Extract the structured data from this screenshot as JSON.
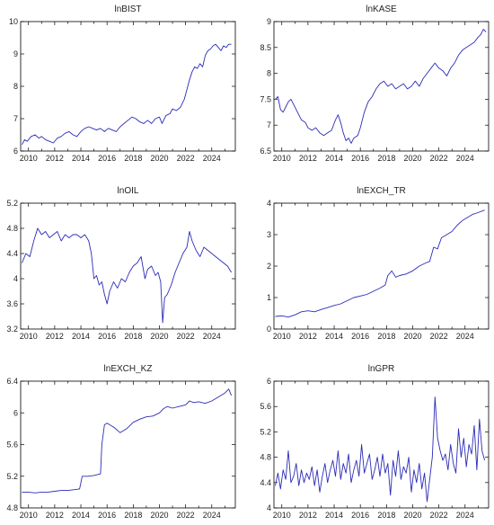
{
  "chart_data": [
    {
      "type": "line",
      "title": "lnBIST",
      "xlabel": "",
      "ylabel": "",
      "xlim": [
        2009.4,
        2025.8
      ],
      "ylim": [
        6,
        10
      ],
      "x_ticks": [
        2010,
        2012,
        2014,
        2016,
        2018,
        2020,
        2022,
        2024
      ],
      "y_ticks": [
        6,
        7,
        8,
        9,
        10
      ],
      "series": [
        {
          "x": [
            2009.5,
            2009.7,
            2009.9,
            2010.2,
            2010.5,
            2010.8,
            2011.0,
            2011.3,
            2011.6,
            2011.9,
            2012.2,
            2012.5,
            2012.8,
            2013.1,
            2013.4,
            2013.7,
            2014.0,
            2014.3,
            2014.6,
            2014.9,
            2015.2,
            2015.5,
            2015.8,
            2016.1,
            2016.4,
            2016.7,
            2017.0,
            2017.3,
            2017.6,
            2017.9,
            2018.2,
            2018.5,
            2018.8,
            2019.1,
            2019.4,
            2019.7,
            2020.0,
            2020.2,
            2020.5,
            2020.8,
            2021.0,
            2021.3,
            2021.6,
            2021.9,
            2022.1,
            2022.3,
            2022.5,
            2022.7,
            2022.9,
            2023.1,
            2023.3,
            2023.5,
            2023.7,
            2023.9,
            2024.1,
            2024.3,
            2024.5,
            2024.7,
            2024.9,
            2025.1,
            2025.3,
            2025.5
          ],
          "y": [
            6.2,
            6.35,
            6.3,
            6.45,
            6.5,
            6.4,
            6.45,
            6.35,
            6.3,
            6.25,
            6.4,
            6.45,
            6.55,
            6.6,
            6.5,
            6.45,
            6.6,
            6.7,
            6.75,
            6.7,
            6.65,
            6.7,
            6.6,
            6.7,
            6.65,
            6.6,
            6.75,
            6.85,
            6.95,
            7.05,
            7.0,
            6.9,
            6.85,
            6.95,
            6.85,
            7.0,
            7.05,
            6.85,
            7.1,
            7.15,
            7.3,
            7.25,
            7.35,
            7.6,
            7.9,
            8.2,
            8.45,
            8.6,
            8.55,
            8.7,
            8.6,
            8.95,
            9.1,
            9.15,
            9.25,
            9.3,
            9.2,
            9.1,
            9.25,
            9.2,
            9.3,
            9.3
          ]
        }
      ]
    },
    {
      "type": "line",
      "title": "lnKASE",
      "xlabel": "",
      "ylabel": "",
      "xlim": [
        2009.4,
        2025.8
      ],
      "ylim": [
        6.5,
        9.0
      ],
      "x_ticks": [
        2010,
        2012,
        2014,
        2016,
        2018,
        2020,
        2022,
        2024
      ],
      "y_ticks": [
        6.5,
        7.0,
        7.5,
        8.0,
        8.5,
        9.0
      ],
      "series": [
        {
          "x": [
            2009.5,
            2009.7,
            2009.9,
            2010.1,
            2010.3,
            2010.5,
            2010.7,
            2010.9,
            2011.1,
            2011.3,
            2011.5,
            2011.8,
            2012.0,
            2012.3,
            2012.6,
            2012.9,
            2013.2,
            2013.5,
            2013.8,
            2014.1,
            2014.3,
            2014.5,
            2014.7,
            2014.9,
            2015.1,
            2015.3,
            2015.5,
            2015.8,
            2016.0,
            2016.3,
            2016.6,
            2016.9,
            2017.2,
            2017.5,
            2017.8,
            2018.1,
            2018.4,
            2018.7,
            2019.0,
            2019.3,
            2019.6,
            2019.9,
            2020.2,
            2020.5,
            2020.8,
            2021.1,
            2021.4,
            2021.7,
            2022.0,
            2022.3,
            2022.6,
            2022.9,
            2023.2,
            2023.5,
            2023.8,
            2024.1,
            2024.4,
            2024.7,
            2025.0,
            2025.2,
            2025.4,
            2025.6
          ],
          "y": [
            7.5,
            7.55,
            7.3,
            7.25,
            7.35,
            7.45,
            7.5,
            7.4,
            7.3,
            7.2,
            7.1,
            7.05,
            6.95,
            6.9,
            6.95,
            6.85,
            6.8,
            6.85,
            6.9,
            7.1,
            7.2,
            7.05,
            6.85,
            6.7,
            6.75,
            6.65,
            6.75,
            6.8,
            6.95,
            7.25,
            7.45,
            7.55,
            7.7,
            7.8,
            7.85,
            7.75,
            7.8,
            7.7,
            7.75,
            7.8,
            7.7,
            7.75,
            7.85,
            7.75,
            7.9,
            8.0,
            8.1,
            8.2,
            8.1,
            8.05,
            7.95,
            8.1,
            8.2,
            8.35,
            8.45,
            8.5,
            8.55,
            8.6,
            8.7,
            8.75,
            8.85,
            8.8
          ]
        }
      ]
    },
    {
      "type": "line",
      "title": "lnOIL",
      "xlabel": "",
      "ylabel": "",
      "xlim": [
        2009.4,
        2025.8
      ],
      "ylim": [
        3.2,
        5.2
      ],
      "x_ticks": [
        2010,
        2012,
        2014,
        2016,
        2018,
        2020,
        2022,
        2024
      ],
      "y_ticks": [
        3.2,
        3.6,
        4.0,
        4.4,
        4.8,
        5.2
      ],
      "series": [
        {
          "x": [
            2009.5,
            2009.8,
            2010.1,
            2010.4,
            2010.7,
            2011.0,
            2011.3,
            2011.6,
            2011.9,
            2012.2,
            2012.5,
            2012.8,
            2013.1,
            2013.4,
            2013.7,
            2014.0,
            2014.3,
            2014.6,
            2014.8,
            2015.0,
            2015.2,
            2015.4,
            2015.6,
            2015.8,
            2016.0,
            2016.2,
            2016.5,
            2016.8,
            2017.1,
            2017.4,
            2017.7,
            2018.0,
            2018.3,
            2018.6,
            2018.9,
            2019.1,
            2019.4,
            2019.7,
            2019.9,
            2020.1,
            2020.25,
            2020.4,
            2020.6,
            2020.9,
            2021.2,
            2021.5,
            2021.8,
            2022.1,
            2022.3,
            2022.5,
            2022.8,
            2023.1,
            2023.4,
            2023.7,
            2024.0,
            2024.3,
            2024.6,
            2024.9,
            2025.2,
            2025.5
          ],
          "y": [
            4.25,
            4.4,
            4.35,
            4.6,
            4.8,
            4.7,
            4.75,
            4.65,
            4.7,
            4.75,
            4.6,
            4.7,
            4.65,
            4.7,
            4.7,
            4.65,
            4.7,
            4.6,
            4.4,
            4.0,
            4.05,
            3.9,
            3.95,
            3.75,
            3.6,
            3.8,
            3.95,
            3.85,
            4.0,
            3.95,
            4.1,
            4.2,
            4.25,
            4.35,
            4.0,
            4.15,
            4.2,
            4.05,
            4.1,
            3.95,
            3.3,
            3.7,
            3.75,
            3.9,
            4.1,
            4.25,
            4.4,
            4.5,
            4.75,
            4.6,
            4.45,
            4.35,
            4.5,
            4.45,
            4.4,
            4.35,
            4.3,
            4.25,
            4.2,
            4.1
          ]
        }
      ]
    },
    {
      "type": "line",
      "title": "lnEXCH_TR",
      "xlabel": "",
      "ylabel": "",
      "xlim": [
        2009.4,
        2025.8
      ],
      "ylim": [
        0,
        4
      ],
      "x_ticks": [
        2010,
        2012,
        2014,
        2016,
        2018,
        2020,
        2022,
        2024
      ],
      "y_ticks": [
        0,
        1,
        2,
        3,
        4
      ],
      "series": [
        {
          "x": [
            2009.5,
            2010.0,
            2010.5,
            2011.0,
            2011.5,
            2012.0,
            2012.5,
            2013.0,
            2013.5,
            2014.0,
            2014.5,
            2015.0,
            2015.5,
            2016.0,
            2016.5,
            2017.0,
            2017.5,
            2017.9,
            2018.1,
            2018.4,
            2018.7,
            2019.0,
            2019.5,
            2020.0,
            2020.5,
            2021.0,
            2021.3,
            2021.6,
            2021.9,
            2022.2,
            2022.6,
            2023.0,
            2023.4,
            2023.8,
            2024.2,
            2024.6,
            2025.0,
            2025.5
          ],
          "y": [
            0.4,
            0.42,
            0.38,
            0.45,
            0.55,
            0.58,
            0.55,
            0.62,
            0.68,
            0.75,
            0.8,
            0.9,
            1.0,
            1.05,
            1.1,
            1.2,
            1.3,
            1.4,
            1.7,
            1.85,
            1.65,
            1.7,
            1.75,
            1.85,
            2.0,
            2.1,
            2.15,
            2.6,
            2.55,
            2.9,
            3.0,
            3.1,
            3.3,
            3.45,
            3.55,
            3.65,
            3.7,
            3.78
          ]
        }
      ]
    },
    {
      "type": "line",
      "title": "lnEXCH_KZ",
      "xlabel": "",
      "ylabel": "",
      "xlim": [
        2009.4,
        2025.8
      ],
      "ylim": [
        4.8,
        6.4
      ],
      "x_ticks": [
        2010,
        2012,
        2014,
        2016,
        2018,
        2020,
        2022,
        2024
      ],
      "y_ticks": [
        4.8,
        5.2,
        5.6,
        6.0,
        6.4
      ],
      "series": [
        {
          "x": [
            2009.5,
            2010.0,
            2010.5,
            2011.0,
            2011.5,
            2012.0,
            2012.5,
            2013.0,
            2013.5,
            2013.9,
            2014.1,
            2014.5,
            2015.0,
            2015.5,
            2015.6,
            2015.8,
            2016.0,
            2016.5,
            2017.0,
            2017.5,
            2018.0,
            2018.5,
            2019.0,
            2019.5,
            2020.0,
            2020.3,
            2020.6,
            2021.0,
            2021.5,
            2022.0,
            2022.3,
            2022.6,
            2023.0,
            2023.5,
            2024.0,
            2024.5,
            2025.0,
            2025.3,
            2025.5
          ],
          "y": [
            5.0,
            5.0,
            4.99,
            5.0,
            5.0,
            5.01,
            5.02,
            5.02,
            5.03,
            5.04,
            5.2,
            5.2,
            5.21,
            5.23,
            5.6,
            5.85,
            5.87,
            5.82,
            5.75,
            5.8,
            5.88,
            5.92,
            5.95,
            5.96,
            6.0,
            6.05,
            6.08,
            6.06,
            6.08,
            6.1,
            6.15,
            6.13,
            6.14,
            6.12,
            6.15,
            6.2,
            6.25,
            6.3,
            6.22
          ]
        }
      ]
    },
    {
      "type": "line",
      "title": "lnGPR",
      "xlabel": "",
      "ylabel": "",
      "xlim": [
        2009.4,
        2025.8
      ],
      "ylim": [
        4.0,
        6.0
      ],
      "x_ticks": [
        2010,
        2012,
        2014,
        2016,
        2018,
        2020,
        2022,
        2024
      ],
      "y_ticks": [
        4.0,
        4.4,
        4.8,
        5.2,
        5.6,
        6.0
      ],
      "series": [
        {
          "x": [
            2009.5,
            2009.7,
            2009.9,
            2010.1,
            2010.3,
            2010.5,
            2010.7,
            2010.9,
            2011.1,
            2011.3,
            2011.5,
            2011.7,
            2011.9,
            2012.1,
            2012.3,
            2012.5,
            2012.7,
            2012.9,
            2013.1,
            2013.3,
            2013.5,
            2013.7,
            2013.9,
            2014.1,
            2014.3,
            2014.5,
            2014.7,
            2014.9,
            2015.1,
            2015.3,
            2015.5,
            2015.7,
            2015.9,
            2016.1,
            2016.3,
            2016.5,
            2016.7,
            2016.9,
            2017.1,
            2017.3,
            2017.5,
            2017.7,
            2017.9,
            2018.1,
            2018.3,
            2018.5,
            2018.7,
            2018.9,
            2019.1,
            2019.3,
            2019.5,
            2019.7,
            2019.9,
            2020.1,
            2020.3,
            2020.5,
            2020.7,
            2020.9,
            2021.1,
            2021.3,
            2021.5,
            2021.7,
            2021.9,
            2022.1,
            2022.3,
            2022.5,
            2022.7,
            2022.9,
            2023.1,
            2023.3,
            2023.5,
            2023.7,
            2023.9,
            2024.1,
            2024.3,
            2024.5,
            2024.7,
            2024.9,
            2025.1,
            2025.3,
            2025.5
          ],
          "y": [
            4.35,
            4.55,
            4.3,
            4.6,
            4.45,
            4.9,
            4.4,
            4.5,
            4.7,
            4.35,
            4.6,
            4.4,
            4.55,
            4.45,
            4.65,
            4.35,
            4.6,
            4.25,
            4.5,
            4.7,
            4.4,
            4.6,
            4.75,
            4.5,
            4.9,
            4.45,
            4.7,
            4.55,
            4.85,
            4.4,
            4.6,
            4.75,
            4.5,
            5.0,
            4.55,
            4.7,
            4.85,
            4.45,
            4.6,
            4.8,
            4.5,
            4.85,
            4.55,
            4.7,
            4.2,
            4.75,
            4.5,
            4.9,
            4.45,
            4.65,
            4.55,
            4.8,
            4.25,
            4.6,
            4.4,
            4.7,
            4.3,
            4.55,
            4.1,
            4.45,
            4.8,
            5.75,
            5.1,
            4.9,
            4.75,
            4.85,
            4.6,
            5.0,
            4.7,
            4.55,
            5.25,
            4.8,
            5.1,
            4.65,
            5.0,
            4.85,
            5.3,
            4.6,
            5.4,
            4.9,
            4.75
          ]
        }
      ]
    }
  ]
}
